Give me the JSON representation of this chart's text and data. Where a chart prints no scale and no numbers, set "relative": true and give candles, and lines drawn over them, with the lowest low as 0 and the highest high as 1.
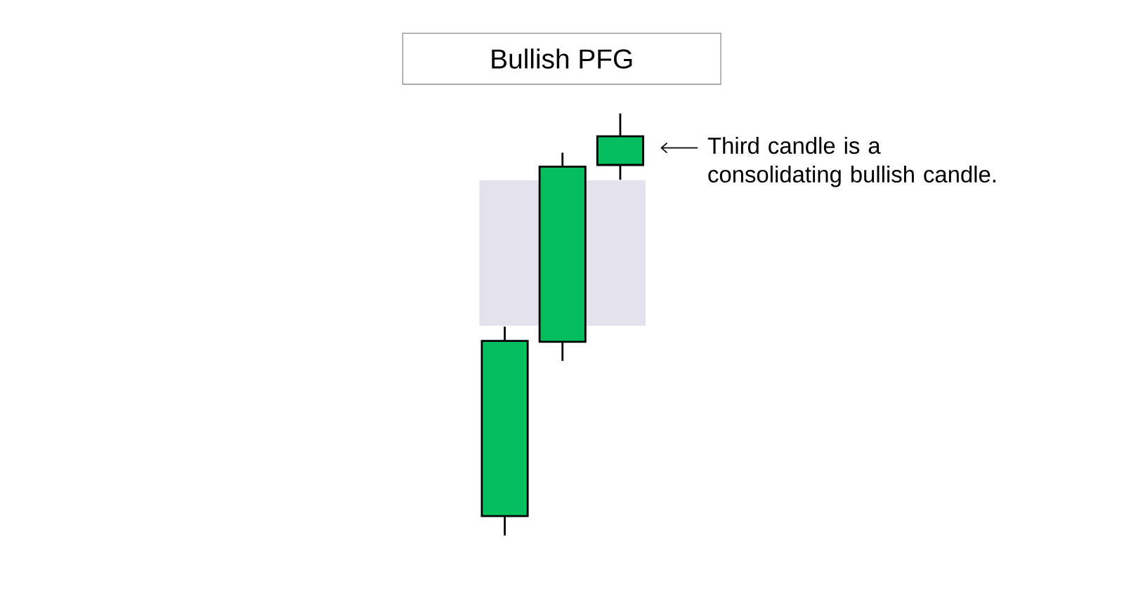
{
  "chart_data": {
    "type": "candlestick",
    "title": "Bullish PFG",
    "categories": [
      null,
      null,
      null
    ],
    "ohlc": [
      [
        0.046,
        0.495,
        0,
        0.461
      ],
      [
        0.459,
        0.907,
        0.414,
        0.874
      ],
      [
        0.878,
        1,
        0.843,
        0.946
      ]
    ],
    "color": "#05bf5f",
    "relative": true,
    "bands": [
      {
        "axis": "y",
        "from": 0.497,
        "to": 0.842,
        "color": "#e4e3ed"
      }
    ],
    "annotations": [
      "Third candle is a consolidating bullish candle."
    ]
  }
}
